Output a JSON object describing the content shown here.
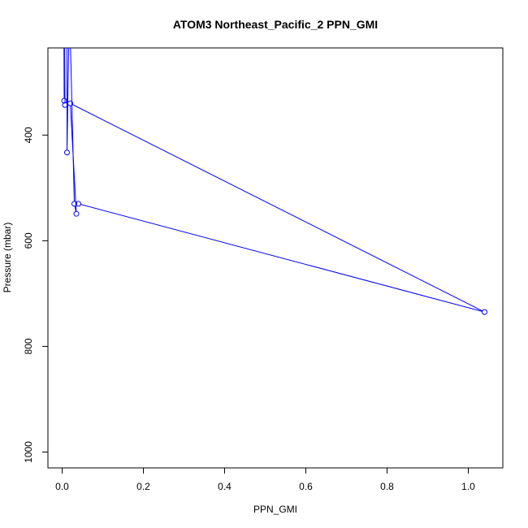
{
  "chart_data": {
    "type": "line",
    "title": "ATOM3 Northeast_Pacific_2 PPN_GMI",
    "xlabel": "PPN_GMI",
    "ylabel": "Pressure (mbar)",
    "xlim": [
      -0.035,
      1.085
    ],
    "ylim": [
      1030,
      235
    ],
    "y_reversed": true,
    "grid": false,
    "x_ticks": [
      0.0,
      0.2,
      0.4,
      0.6,
      0.8,
      1.0
    ],
    "x_tick_labels": [
      "0.0",
      "0.2",
      "0.4",
      "0.6",
      "0.8",
      "1.0"
    ],
    "y_ticks": [
      400,
      600,
      800,
      1000
    ],
    "y_tick_labels": [
      "400",
      "600",
      "800",
      "1000"
    ],
    "series": [
      {
        "color": "#0000ff",
        "marker": "open-circle",
        "points": [
          {
            "x": 0.004,
            "y": 150
          },
          {
            "x": 0.005,
            "y": 335
          },
          {
            "x": 0.007,
            "y": 343
          },
          {
            "x": 0.006,
            "y": 150
          },
          {
            "x": 0.012,
            "y": 150
          },
          {
            "x": 0.012,
            "y": 433
          },
          {
            "x": 0.018,
            "y": 150
          },
          {
            "x": 0.03,
            "y": 530
          },
          {
            "x": 0.035,
            "y": 549
          },
          {
            "x": 0.02,
            "y": 340
          },
          {
            "x": 1.04,
            "y": 735
          },
          {
            "x": 0.04,
            "y": 530
          }
        ]
      }
    ]
  }
}
